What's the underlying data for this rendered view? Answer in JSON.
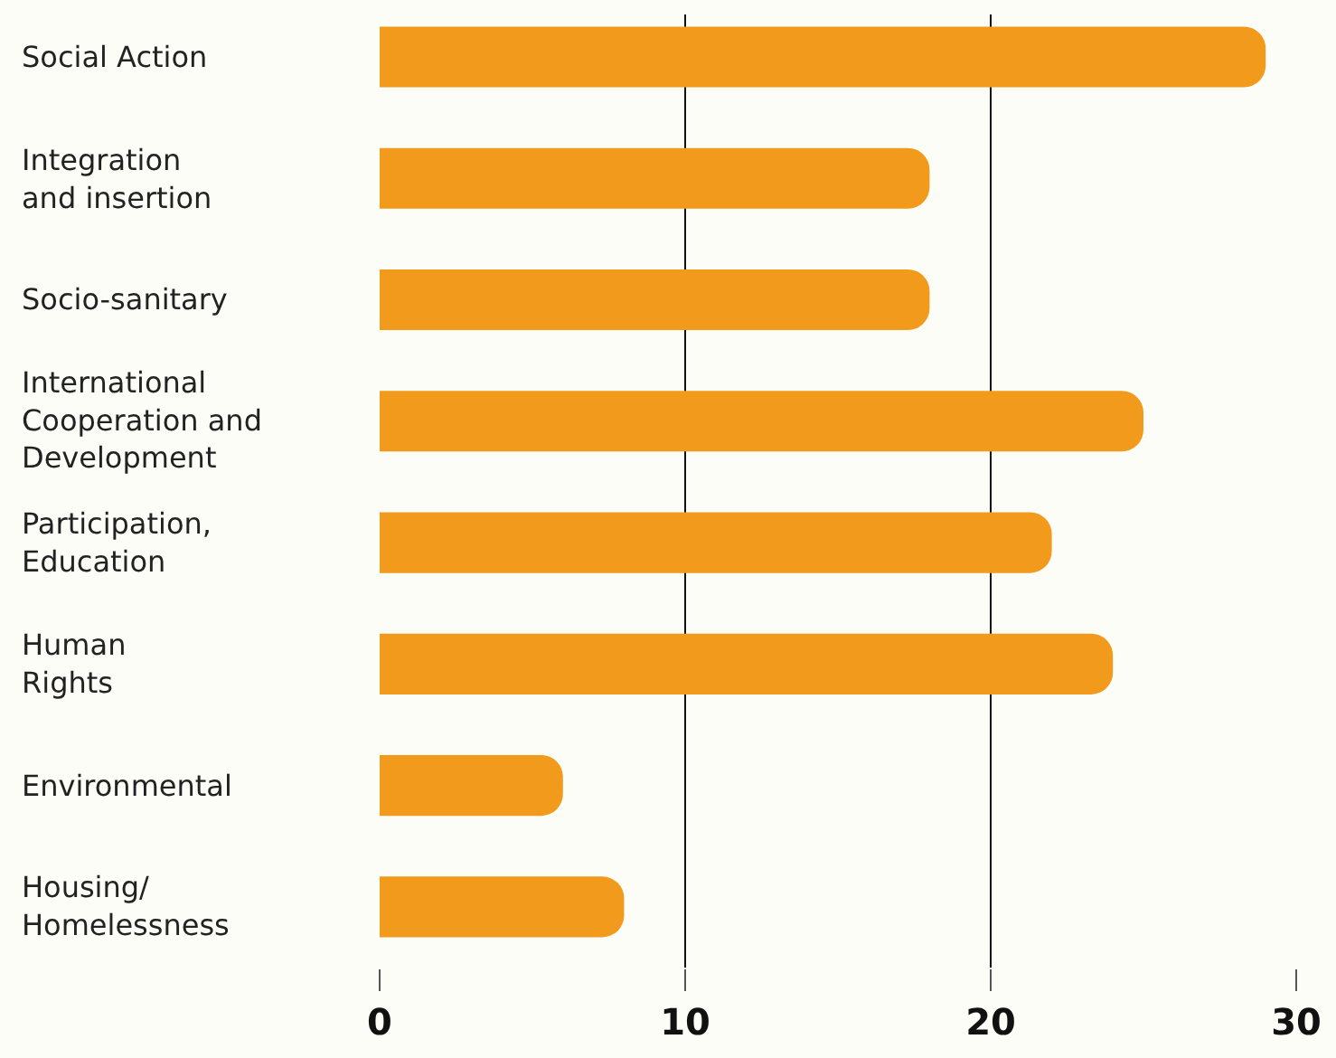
{
  "chart_data": {
    "type": "bar",
    "orientation": "horizontal",
    "categories": [
      "Social Action",
      "Integration\nand insertion",
      "Socio-sanitary",
      "International\nCooperation and\nDevelopment",
      "Participation,\nEducation",
      "Human\nRights",
      "Environmental",
      "Housing/\nHomelessness"
    ],
    "values": [
      29,
      18,
      18,
      25,
      22,
      24,
      6,
      8
    ],
    "color": "#f29a1b",
    "xlim": [
      0,
      30
    ],
    "xticks": [
      0,
      10,
      20,
      30
    ],
    "grid": "x",
    "legend": false
  }
}
